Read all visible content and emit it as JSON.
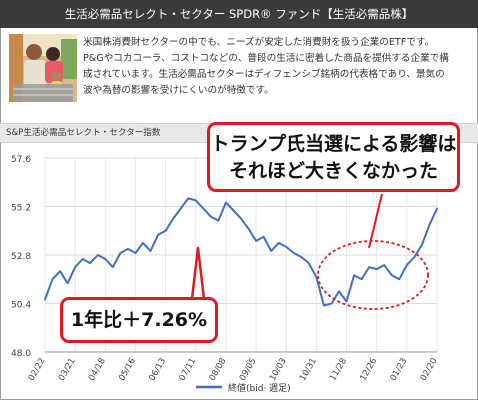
{
  "header": {
    "title": "生活必需品セレクト・セクター SPDR® ファンド【生活必需品株】"
  },
  "description": {
    "lines": [
      "米国株消費財セクターの中でも、ニーズが安定した消費財を扱う企業のETFです。",
      "P&Gやコカコーラ、コストコなどの、普段の生活に密着した商品を提供する企業で構",
      "成されています。生活必需品セクターはディフェンシブ銘柄の代表格であり、景気の",
      "波や為替の影響を受けにくいのが特徴です。"
    ]
  },
  "chart_section": {
    "title": "S&P生活必需品セレクト・セクター指数"
  },
  "annotations": {
    "trump_line1": "トランプ氏当選による影響は",
    "trump_line2": "それほど大きくなかった",
    "yoy": "1年比＋7.26%"
  },
  "colors": {
    "line": "#3f6fc6",
    "callout_border": "#e0191e",
    "header_bg": "#3b3b3b"
  },
  "chart_data": {
    "type": "line",
    "title": "S&P生活必需品セレクト・セクター指数",
    "ylim": [
      48.0,
      57.6
    ],
    "yticks": [
      "57.6",
      "55.2",
      "52.8",
      "50.4",
      "48.0"
    ],
    "ytick_values": [
      57.6,
      55.2,
      52.8,
      50.4,
      48.0
    ],
    "xticks": [
      "02/22",
      "03/21",
      "04/18",
      "05/16",
      "06/13",
      "07/11",
      "08/08",
      "09/05",
      "10/03",
      "10/31",
      "11/28",
      "12/26",
      "01/23",
      "02/20"
    ],
    "legend": "終値(bid· 週足)",
    "grid": true,
    "series": [
      {
        "name": "終値(bid· 週足)",
        "x_index": [
          0,
          0.25,
          0.5,
          0.75,
          1,
          1.25,
          1.5,
          1.75,
          2,
          2.25,
          2.5,
          2.75,
          3,
          3.25,
          3.5,
          3.75,
          4,
          4.25,
          4.5,
          4.75,
          5,
          5.25,
          5.5,
          5.75,
          6,
          6.25,
          6.5,
          6.75,
          7,
          7.25,
          7.5,
          7.75,
          8,
          8.25,
          8.5,
          8.75,
          9,
          9.25,
          9.5,
          9.75,
          10,
          10.25,
          10.5,
          10.75,
          11,
          11.25,
          11.5,
          11.75,
          12,
          12.25,
          12.5,
          12.75,
          13
        ],
        "values": [
          50.6,
          51.6,
          52.0,
          51.4,
          52.2,
          52.6,
          52.4,
          52.8,
          52.6,
          52.2,
          52.9,
          53.1,
          52.9,
          53.4,
          53.0,
          53.8,
          54.0,
          54.6,
          55.1,
          55.6,
          55.5,
          55.1,
          54.7,
          54.5,
          55.4,
          55.0,
          54.6,
          54.1,
          53.5,
          53.7,
          53.0,
          53.4,
          53.2,
          52.9,
          52.7,
          52.4,
          51.7,
          50.3,
          50.4,
          51.0,
          50.5,
          51.8,
          51.6,
          52.2,
          52.1,
          52.3,
          51.8,
          51.6,
          52.3,
          52.7,
          53.3,
          54.3,
          55.1
        ]
      }
    ]
  }
}
